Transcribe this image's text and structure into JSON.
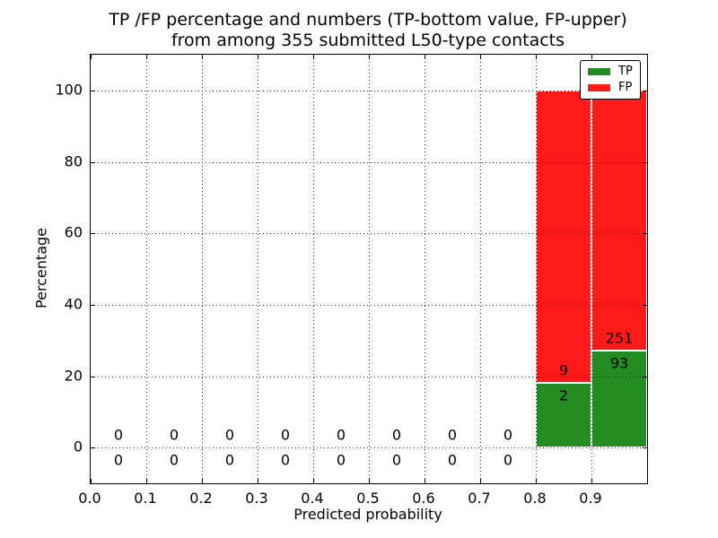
{
  "title": {
    "line1": "TP /FP percentage and numbers (TP-bottom value, FP-upper)",
    "line2": "from among 355 submitted L50-type contacts"
  },
  "axes": {
    "xlabel": "Predicted probability",
    "ylabel": "Percentage"
  },
  "legend": [
    {
      "label": "TP",
      "color": "#228B22"
    },
    {
      "label": "FP",
      "color": "#ff1a1a"
    }
  ],
  "chart_data": {
    "type": "bar",
    "stacked": true,
    "title": "TP /FP percentage and numbers (TP-bottom value, FP-upper) from among 355 submitted L50-type contacts",
    "xlabel": "Predicted probability",
    "ylabel": "Percentage",
    "xlim": [
      0.0,
      1.0
    ],
    "ylim": [
      -10,
      110
    ],
    "grid": true,
    "grid_style": "dotted",
    "grid_above_bars": true,
    "legend_position": "upper right",
    "total_submitted": 355,
    "bin_width": 0.1,
    "bins_start": [
      0.0,
      0.1,
      0.2,
      0.3,
      0.4,
      0.5,
      0.6,
      0.7,
      0.8,
      0.9
    ],
    "series": [
      {
        "name": "TP",
        "color": "#228B22",
        "counts": [
          0,
          0,
          0,
          0,
          0,
          0,
          0,
          0,
          2,
          93
        ]
      },
      {
        "name": "FP",
        "color": "#ff1a1a",
        "counts": [
          0,
          0,
          0,
          0,
          0,
          0,
          0,
          0,
          9,
          251
        ]
      }
    ],
    "percent_tp_of_bin": [
      0,
      0,
      0,
      0,
      0,
      0,
      0,
      0,
      18.2,
      27.0
    ],
    "percent_fp_of_bin": [
      0,
      0,
      0,
      0,
      0,
      0,
      0,
      0,
      81.8,
      73.0
    ],
    "annotation_rule": "FP count above TP segment top, TP count below it; zeros shown around the 0 line",
    "xticks": [
      0.0,
      0.1,
      0.2,
      0.3,
      0.4,
      0.5,
      0.6,
      0.7,
      0.8,
      0.9
    ],
    "xtick_labels": [
      "0.0",
      "0.1",
      "0.2",
      "0.3",
      "0.4",
      "0.5",
      "0.6",
      "0.7",
      "0.8",
      "0.9"
    ],
    "yticks": [
      0,
      20,
      40,
      60,
      80,
      100
    ],
    "ytick_labels": [
      "0",
      "20",
      "40",
      "60",
      "80",
      "100"
    ]
  }
}
